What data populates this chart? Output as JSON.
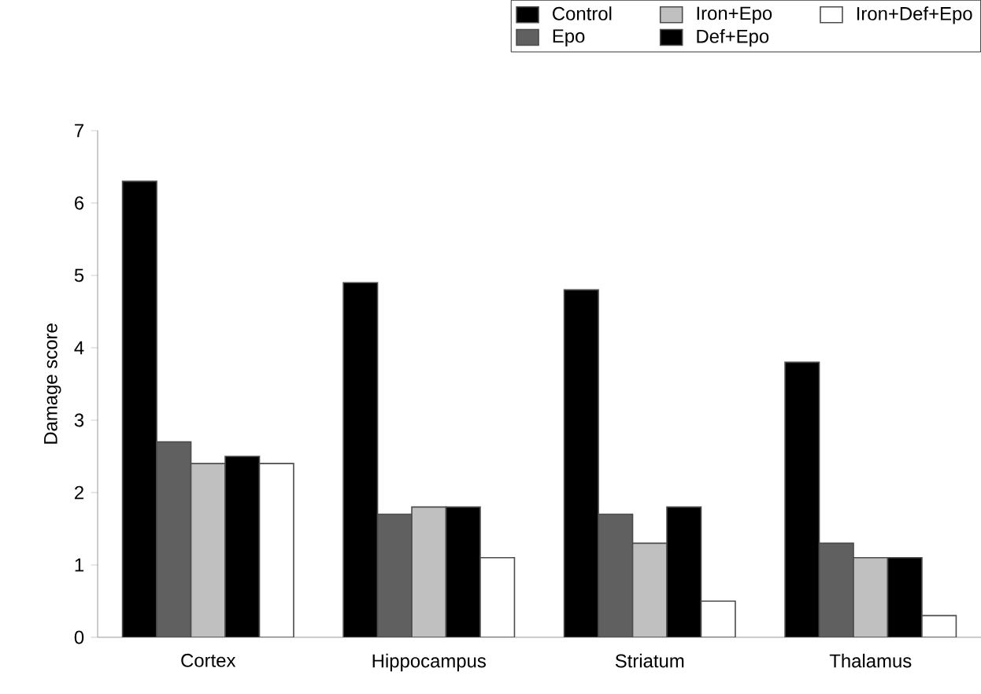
{
  "chart_data": {
    "type": "bar",
    "ylabel": "Damage score",
    "categories": [
      "Cortex",
      "Hippocampus",
      "Striatum",
      "Thalamus"
    ],
    "series": [
      {
        "name": "Control",
        "color": "#000000",
        "values": [
          6.3,
          4.9,
          4.8,
          3.8
        ]
      },
      {
        "name": "Epo",
        "color": "#606060",
        "values": [
          2.7,
          1.7,
          1.7,
          1.3
        ]
      },
      {
        "name": "Iron+Epo",
        "color": "#c0c0c0",
        "values": [
          2.4,
          1.8,
          1.3,
          1.1
        ]
      },
      {
        "name": "Def+Epo",
        "color": "#000000",
        "values": [
          2.5,
          1.8,
          1.8,
          1.1
        ]
      },
      {
        "name": "Iron+Def+Epo",
        "color": "#ffffff",
        "values": [
          2.4,
          1.1,
          0.5,
          0.3
        ]
      }
    ],
    "ylim": [
      0,
      7
    ],
    "yticks": [
      0,
      1,
      2,
      3,
      4,
      5,
      6,
      7
    ],
    "grid": false,
    "legend": "top"
  }
}
